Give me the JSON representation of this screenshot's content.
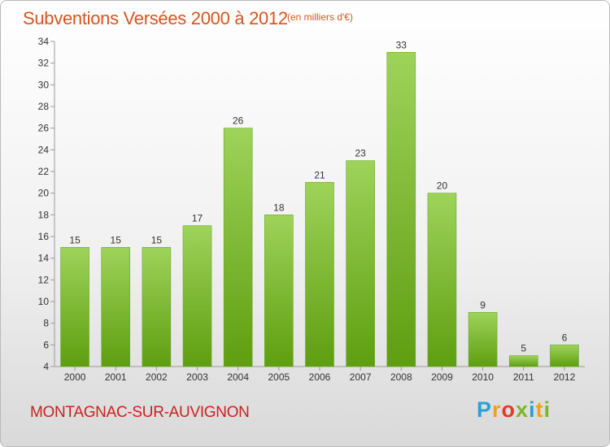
{
  "title": "Subventions Versées 2000 à 2012",
  "unit": "(en milliers d'€)",
  "commune": "MONTAGNAC-SUR-AUVIGNON",
  "logo": {
    "letters": [
      "P",
      "r",
      "o",
      "x",
      "i",
      "t",
      "i"
    ],
    "colors": [
      "#2aa0d8",
      "#f0a020",
      "#e23a2a",
      "#7ab828",
      "#2aa0d8",
      "#f0a020",
      "#7ab828"
    ]
  },
  "colors": {
    "bar_light": "#9ed35a",
    "bar_dark": "#5e9e10",
    "axis": "#999999"
  },
  "chart_data": {
    "type": "bar",
    "categories": [
      "2000",
      "2001",
      "2002",
      "2003",
      "2004",
      "2005",
      "2006",
      "2007",
      "2008",
      "2009",
      "2010",
      "2011",
      "2012"
    ],
    "values": [
      15,
      15,
      15,
      17,
      26,
      18,
      21,
      23,
      33,
      20,
      9,
      5,
      6
    ],
    "ylim": [
      4,
      34
    ],
    "yticks": [
      4,
      6,
      8,
      10,
      12,
      14,
      16,
      18,
      20,
      22,
      24,
      26,
      28,
      30,
      32,
      34
    ],
    "grid": false,
    "xlabel": "",
    "ylabel": ""
  }
}
